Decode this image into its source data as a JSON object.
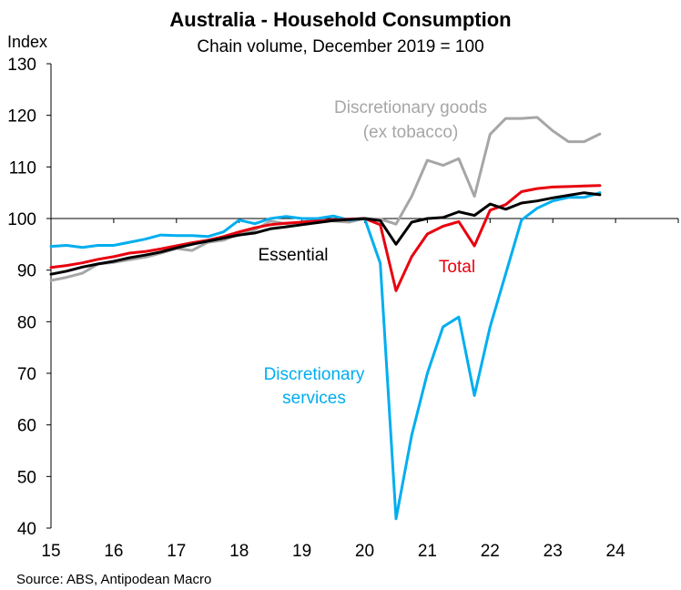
{
  "chart_data": {
    "type": "line",
    "title": "Australia - Household Consumption",
    "subtitle": "Chain volume, December 2019 = 100",
    "ylabel": "Index",
    "source": "Source: ABS, Antipodean Macro",
    "ylim": [
      40,
      130
    ],
    "yticks": [
      40,
      50,
      60,
      70,
      80,
      90,
      100,
      110,
      120,
      130
    ],
    "xlim": [
      2015,
      2025
    ],
    "xtick_values": [
      2015,
      2016,
      2017,
      2018,
      2019,
      2020,
      2021,
      2022,
      2023,
      2024
    ],
    "xtick_labels": [
      "15",
      "16",
      "17",
      "18",
      "19",
      "20",
      "21",
      "22",
      "23",
      "24"
    ],
    "reference_line": 100,
    "grid": false,
    "series": [
      {
        "name": "Discretionary goods (ex tobacco)",
        "label_lines": [
          "Discretionary goods",
          "(ex tobacco)"
        ],
        "color": "#a6a6a6",
        "x": [
          2015.0,
          2015.25,
          2015.5,
          2015.75,
          2016.0,
          2016.25,
          2016.5,
          2016.75,
          2017.0,
          2017.25,
          2017.5,
          2017.75,
          2018.0,
          2018.25,
          2018.5,
          2018.75,
          2019.0,
          2019.25,
          2019.5,
          2019.75,
          2020.0,
          2020.25,
          2020.5,
          2020.75,
          2021.0,
          2021.25,
          2021.5,
          2021.75,
          2022.0,
          2022.25,
          2022.5,
          2022.75,
          2023.0,
          2023.25,
          2023.5,
          2023.75
        ],
        "values": [
          88.0,
          88.6,
          89.4,
          91.2,
          91.5,
          92.0,
          92.5,
          93.3,
          94.2,
          93.8,
          95.4,
          95.8,
          97.0,
          97.8,
          99.5,
          99.0,
          99.3,
          99.8,
          99.5,
          99.3,
          100.0,
          99.9,
          98.9,
          104.3,
          111.3,
          110.3,
          111.6,
          104.3,
          116.3,
          119.4,
          119.4,
          119.6,
          117.0,
          114.9,
          114.9,
          116.4
        ]
      },
      {
        "name": "Discretionary services",
        "label_lines": [
          "Discretionary",
          "services"
        ],
        "color": "#00aeef",
        "x": [
          2015.0,
          2015.25,
          2015.5,
          2015.75,
          2016.0,
          2016.25,
          2016.5,
          2016.75,
          2017.0,
          2017.25,
          2017.5,
          2017.75,
          2018.0,
          2018.25,
          2018.5,
          2018.75,
          2019.0,
          2019.25,
          2019.5,
          2019.75,
          2020.0,
          2020.25,
          2020.5,
          2020.75,
          2021.0,
          2021.25,
          2021.5,
          2021.75,
          2022.0,
          2022.25,
          2022.5,
          2022.75,
          2023.0,
          2023.25,
          2023.5,
          2023.75
        ],
        "values": [
          94.6,
          94.8,
          94.4,
          94.8,
          94.8,
          95.4,
          96.0,
          96.8,
          96.7,
          96.7,
          96.5,
          97.4,
          99.7,
          99.0,
          100.0,
          100.4,
          100.0,
          100.0,
          100.5,
          99.7,
          100.0,
          91.3,
          41.8,
          58.0,
          70.0,
          79.0,
          80.9,
          65.7,
          79.0,
          89.3,
          99.7,
          102.0,
          103.4,
          104.1,
          104.1,
          105.0
        ]
      },
      {
        "name": "Total",
        "label_lines": [
          "Total"
        ],
        "color": "#e8000e",
        "x": [
          2015.0,
          2015.25,
          2015.5,
          2015.75,
          2016.0,
          2016.25,
          2016.5,
          2016.75,
          2017.0,
          2017.25,
          2017.5,
          2017.75,
          2018.0,
          2018.25,
          2018.5,
          2018.75,
          2019.0,
          2019.25,
          2019.5,
          2019.75,
          2020.0,
          2020.25,
          2020.5,
          2020.75,
          2021.0,
          2021.25,
          2021.5,
          2021.75,
          2022.0,
          2022.25,
          2022.5,
          2022.75,
          2023.0,
          2023.25,
          2023.5,
          2023.75
        ],
        "values": [
          90.5,
          90.9,
          91.4,
          92.1,
          92.6,
          93.3,
          93.6,
          94.1,
          94.7,
          95.3,
          95.8,
          96.5,
          97.4,
          98.2,
          98.8,
          99.1,
          99.3,
          99.5,
          99.7,
          99.9,
          100.0,
          98.8,
          86.0,
          92.6,
          97.0,
          98.5,
          99.4,
          94.7,
          101.6,
          102.7,
          105.2,
          105.8,
          106.1,
          106.2,
          106.3,
          106.4
        ]
      },
      {
        "name": "Essential",
        "label_lines": [
          "Essential"
        ],
        "color": "#000000",
        "x": [
          2015.0,
          2015.25,
          2015.5,
          2015.75,
          2016.0,
          2016.25,
          2016.5,
          2016.75,
          2017.0,
          2017.25,
          2017.5,
          2017.75,
          2018.0,
          2018.25,
          2018.5,
          2018.75,
          2019.0,
          2019.25,
          2019.5,
          2019.75,
          2020.0,
          2020.25,
          2020.5,
          2020.75,
          2021.0,
          2021.25,
          2021.5,
          2021.75,
          2022.0,
          2022.25,
          2022.5,
          2022.75,
          2023.0,
          2023.25,
          2023.5,
          2023.75
        ],
        "values": [
          89.2,
          89.8,
          90.6,
          91.2,
          91.7,
          92.4,
          92.9,
          93.5,
          94.3,
          95.0,
          95.6,
          96.2,
          96.8,
          97.2,
          98.0,
          98.4,
          98.8,
          99.2,
          99.6,
          99.8,
          100.0,
          99.6,
          95.0,
          99.3,
          100.0,
          100.2,
          101.3,
          100.6,
          102.8,
          101.8,
          103.0,
          103.4,
          104.0,
          104.5,
          105.0,
          104.6
        ]
      }
    ]
  }
}
